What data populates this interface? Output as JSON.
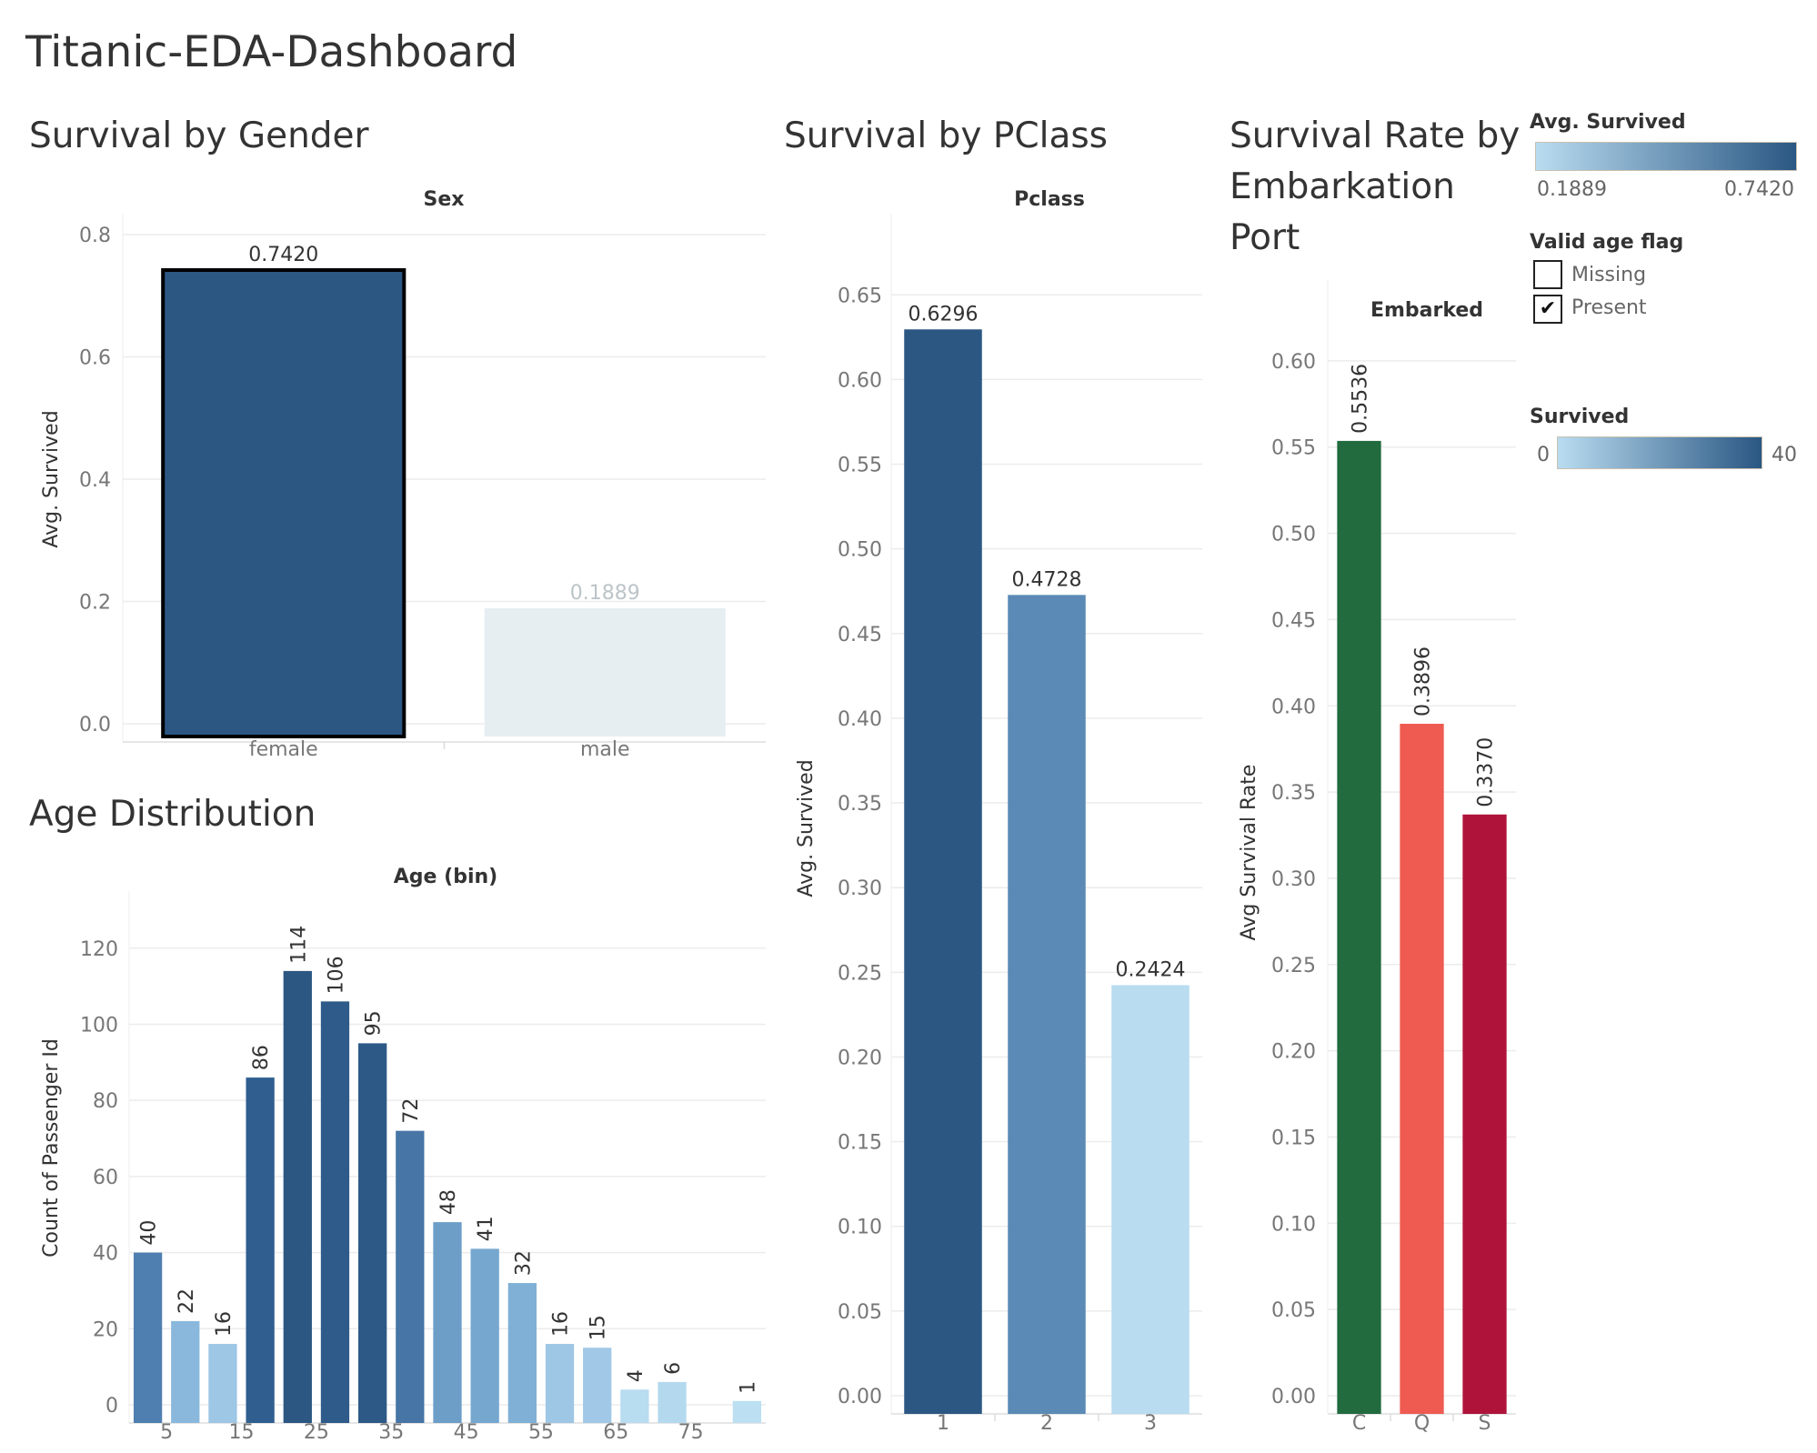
{
  "dashboard_title": "Titanic-EDA-Dashboard",
  "legends": {
    "avg_survived": {
      "title": "Avg. Survived",
      "min": "0.1889",
      "max": "0.7420",
      "color_low": "#b9dcf0",
      "color_high": "#2a5783"
    },
    "valid_age_flag": {
      "title": "Valid age flag",
      "items": [
        {
          "label": "Missing",
          "checked": false
        },
        {
          "label": "Present",
          "checked": true
        }
      ]
    },
    "survived": {
      "title": "Survived",
      "min": "0",
      "max": "40",
      "color_low": "#b9dcf0",
      "color_high": "#2a5783"
    }
  },
  "chart_data": [
    {
      "id": "gender",
      "sheet_title": "Survival by Gender",
      "type": "bar",
      "header": "Sex",
      "ylabel": "Avg. Survived",
      "categories": [
        "female",
        "male"
      ],
      "values": [
        0.742,
        0.1889
      ],
      "value_labels": [
        "0.7420",
        "0.1889"
      ],
      "ylim": [
        0,
        0.8
      ],
      "yticks": [
        0.0,
        0.2,
        0.4,
        0.6,
        0.8
      ],
      "ytick_labels": [
        "0.0",
        "0.2",
        "0.4",
        "0.6",
        "0.8"
      ],
      "colors": [
        "#2c5783",
        "#e7eef2"
      ],
      "label_colors": [
        "#333333",
        "#bcc4c8"
      ],
      "selected": "female",
      "grid": true
    },
    {
      "id": "age",
      "sheet_title": "Age Distribution",
      "type": "bar",
      "header": "Age (bin)",
      "ylabel": "Count of Passenger Id",
      "x": [
        0,
        5,
        10,
        15,
        20,
        25,
        30,
        35,
        40,
        45,
        50,
        55,
        60,
        65,
        70,
        75,
        80
      ],
      "values": [
        40,
        22,
        16,
        86,
        114,
        106,
        95,
        72,
        48,
        41,
        32,
        16,
        15,
        4,
        6,
        0,
        1
      ],
      "xtick_labels": [
        "5",
        "15",
        "25",
        "35",
        "45",
        "55",
        "65",
        "75"
      ],
      "xtick_values": [
        5,
        15,
        25,
        35,
        45,
        55,
        65,
        75
      ],
      "ylim": [
        0,
        135
      ],
      "yticks": [
        0,
        20,
        40,
        60,
        80,
        100,
        120
      ],
      "ytick_labels": [
        "0",
        "20",
        "40",
        "60",
        "80",
        "100",
        "120"
      ],
      "colors": [
        "#4e7fb0",
        "#8ab8dc",
        "#9ec6e5",
        "#2f5e8f",
        "#2c5783",
        "#2e5b89",
        "#2d5986",
        "#4775a6",
        "#6d9ec8",
        "#76a7cf",
        "#80b0d6",
        "#9ec6e5",
        "#a1c8e6",
        "#b8dcf0",
        "#b4d9ee",
        "#ffffff",
        "#bcdff2"
      ],
      "grid": true
    },
    {
      "id": "pclass",
      "sheet_title": "Survival by PClass",
      "type": "bar",
      "header": "Pclass",
      "ylabel": "Avg. Survived",
      "categories": [
        "1",
        "2",
        "3"
      ],
      "values": [
        0.6296,
        0.4728,
        0.2424
      ],
      "value_labels": [
        "0.6296",
        "0.4728",
        "0.2424"
      ],
      "ylim": [
        0,
        0.67
      ],
      "yticks": [
        0.0,
        0.05,
        0.1,
        0.15,
        0.2,
        0.25,
        0.3,
        0.35,
        0.4,
        0.45,
        0.5,
        0.55,
        0.6,
        0.65
      ],
      "ytick_labels": [
        "0.00",
        "0.05",
        "0.10",
        "0.15",
        "0.20",
        "0.25",
        "0.30",
        "0.35",
        "0.40",
        "0.45",
        "0.50",
        "0.55",
        "0.60",
        "0.65"
      ],
      "colors": [
        "#2c5783",
        "#5a8ab5",
        "#b9dcf0"
      ],
      "grid": true
    },
    {
      "id": "embarked",
      "sheet_title": "Survival Rate by Embarkation Port",
      "sheet_title_lines": [
        "Survival Rate by",
        "Embarkation",
        "Port"
      ],
      "type": "bar",
      "header": "Embarked",
      "ylabel": "Avg Survival Rate",
      "categories": [
        "C",
        "Q",
        "S"
      ],
      "values": [
        0.5536,
        0.3896,
        0.337
      ],
      "value_labels": [
        "0.5536",
        "0.3896",
        "0.3370"
      ],
      "ylim": [
        0,
        0.63
      ],
      "yticks": [
        0.0,
        0.05,
        0.1,
        0.15,
        0.2,
        0.25,
        0.3,
        0.35,
        0.4,
        0.45,
        0.5,
        0.55,
        0.6
      ],
      "ytick_labels": [
        "0.00",
        "0.05",
        "0.10",
        "0.15",
        "0.20",
        "0.25",
        "0.30",
        "0.35",
        "0.40",
        "0.45",
        "0.50",
        "0.55",
        "0.60"
      ],
      "colors": [
        "#226b3e",
        "#ef5b50",
        "#b0133a"
      ],
      "grid": true
    }
  ]
}
